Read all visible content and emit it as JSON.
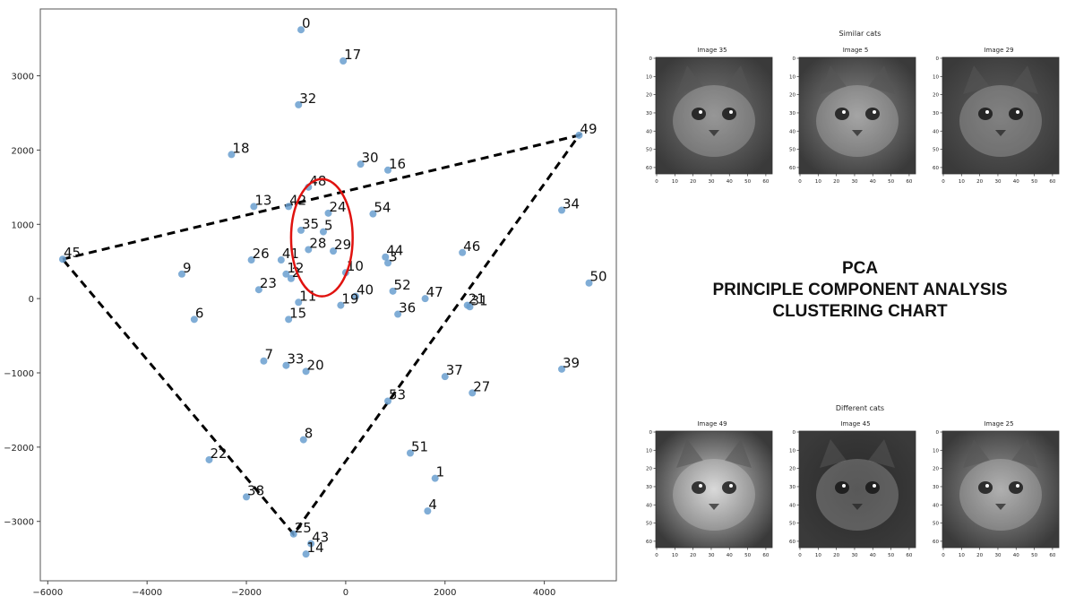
{
  "chart_data": [
    {
      "type": "scatter",
      "title": "",
      "xlabel": "",
      "ylabel": "",
      "xlim": [
        -6150,
        5450
      ],
      "ylim": [
        -3800,
        3900
      ],
      "xticks": [
        -6000,
        -4000,
        -2000,
        0,
        2000,
        4000
      ],
      "yticks": [
        -3000,
        -2000,
        -1000,
        0,
        1000,
        2000,
        3000
      ],
      "point_color": "#6a9fcf",
      "points": [
        {
          "label": "0",
          "x": -900,
          "y": 3620
        },
        {
          "label": "17",
          "x": -50,
          "y": 3200
        },
        {
          "label": "32",
          "x": -950,
          "y": 2610
        },
        {
          "label": "18",
          "x": -2300,
          "y": 1940
        },
        {
          "label": "30",
          "x": 300,
          "y": 1810
        },
        {
          "label": "16",
          "x": 850,
          "y": 1730
        },
        {
          "label": "49",
          "x": 4700,
          "y": 2200
        },
        {
          "label": "48",
          "x": -750,
          "y": 1500
        },
        {
          "label": "13",
          "x": -1850,
          "y": 1240
        },
        {
          "label": "42",
          "x": -1150,
          "y": 1240
        },
        {
          "label": "24",
          "x": -350,
          "y": 1150
        },
        {
          "label": "54",
          "x": 550,
          "y": 1140
        },
        {
          "label": "34",
          "x": 4350,
          "y": 1190
        },
        {
          "label": "35",
          "x": -900,
          "y": 920
        },
        {
          "label": "5",
          "x": -450,
          "y": 900
        },
        {
          "label": "28",
          "x": -750,
          "y": 660
        },
        {
          "label": "29",
          "x": -250,
          "y": 640
        },
        {
          "label": "45",
          "x": -5700,
          "y": 530
        },
        {
          "label": "26",
          "x": -1900,
          "y": 520
        },
        {
          "label": "41",
          "x": -1300,
          "y": 520
        },
        {
          "label": "44",
          "x": 800,
          "y": 560
        },
        {
          "label": "3",
          "x": 850,
          "y": 480
        },
        {
          "label": "46",
          "x": 2350,
          "y": 620
        },
        {
          "label": "9",
          "x": -3300,
          "y": 330
        },
        {
          "label": "12",
          "x": -1200,
          "y": 330
        },
        {
          "label": "2",
          "x": -1100,
          "y": 270
        },
        {
          "label": "10",
          "x": 0,
          "y": 350
        },
        {
          "label": "50",
          "x": 4900,
          "y": 210
        },
        {
          "label": "23",
          "x": -1750,
          "y": 120
        },
        {
          "label": "52",
          "x": 950,
          "y": 100
        },
        {
          "label": "40",
          "x": 200,
          "y": 30
        },
        {
          "label": "47",
          "x": 1600,
          "y": 0
        },
        {
          "label": "11",
          "x": -950,
          "y": -50
        },
        {
          "label": "19",
          "x": -100,
          "y": -90
        },
        {
          "label": "21",
          "x": 2450,
          "y": -90
        },
        {
          "label": "31",
          "x": 2500,
          "y": -110
        },
        {
          "label": "36",
          "x": 1050,
          "y": -210
        },
        {
          "label": "6",
          "x": -3050,
          "y": -280
        },
        {
          "label": "15",
          "x": -1150,
          "y": -280
        },
        {
          "label": "7",
          "x": -1650,
          "y": -840
        },
        {
          "label": "33",
          "x": -1200,
          "y": -900
        },
        {
          "label": "20",
          "x": -800,
          "y": -980
        },
        {
          "label": "39",
          "x": 4350,
          "y": -950
        },
        {
          "label": "37",
          "x": 2000,
          "y": -1050
        },
        {
          "label": "27",
          "x": 2550,
          "y": -1270
        },
        {
          "label": "53",
          "x": 850,
          "y": -1380
        },
        {
          "label": "8",
          "x": -850,
          "y": -1900
        },
        {
          "label": "51",
          "x": 1300,
          "y": -2080
        },
        {
          "label": "22",
          "x": -2750,
          "y": -2170
        },
        {
          "label": "1",
          "x": 1800,
          "y": -2420
        },
        {
          "label": "38",
          "x": -2000,
          "y": -2670
        },
        {
          "label": "4",
          "x": 1650,
          "y": -2860
        },
        {
          "label": "25",
          "x": -1050,
          "y": -3170
        },
        {
          "label": "43",
          "x": -700,
          "y": -3300
        },
        {
          "label": "14",
          "x": -800,
          "y": -3440
        }
      ],
      "triangle_vertices": [
        {
          "x": -5700,
          "y": 530
        },
        {
          "x": 4700,
          "y": 2200
        },
        {
          "x": -1050,
          "y": -3170
        }
      ],
      "highlight_circle": {
        "cx": -480,
        "cy": 820,
        "rx": 620,
        "ry": 790,
        "color": "#e0120f"
      }
    }
  ],
  "right_panel": {
    "title_lines": [
      "PCA",
      "PRINCIPLE COMPONENT ANALYSIS",
      "CLUSTERING CHART"
    ],
    "similar": {
      "heading": "Similar cats",
      "images": [
        {
          "title": "Image 35",
          "tone": "#7a7a7a"
        },
        {
          "title": "Image 5",
          "tone": "#8c8c8c"
        },
        {
          "title": "Image 29",
          "tone": "#5e5e5e"
        }
      ]
    },
    "different": {
      "heading": "Different cats",
      "images": [
        {
          "title": "Image 49",
          "tone": "#cfcfcf"
        },
        {
          "title": "Image 45",
          "tone": "#2a2a2a"
        },
        {
          "title": "Image 25",
          "tone": "#9a9a9a"
        }
      ]
    },
    "img_xticks": [
      "0",
      "10",
      "20",
      "30",
      "40",
      "50",
      "60"
    ],
    "img_yticks": [
      "0",
      "10",
      "20",
      "30",
      "40",
      "50",
      "60"
    ]
  }
}
